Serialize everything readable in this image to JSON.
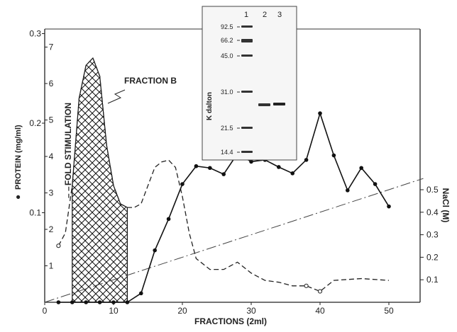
{
  "chart_data": {
    "type": "line",
    "xlabel": "FRACTIONS  (2ml)",
    "x_ticks": [
      "0",
      "10",
      "20",
      "30",
      "40",
      "50"
    ],
    "xlim": [
      0,
      55
    ],
    "left_axis_protein": {
      "label": "PROTEIN  (mg/ml)",
      "legend_marker": "●",
      "ticks": [
        "0.1",
        "0.2",
        "0.3"
      ],
      "ylim": [
        0,
        0.33
      ]
    },
    "left_axis_fold": {
      "label": "FOLD  STIMULATION",
      "legend_marker": "– –",
      "ticks": [
        "1",
        "2",
        "3",
        "4",
        "5",
        "6",
        "7"
      ],
      "ylim": [
        0,
        7.5
      ]
    },
    "right_axis": {
      "label": "NaCl (M)",
      "ticks": [
        "0.1",
        "0.2",
        "0.3",
        "0.4",
        "0.5"
      ],
      "ylim": [
        0,
        0.55
      ]
    },
    "series": [
      {
        "name": "PROTEIN (mg/ml)",
        "style": "solid-dots",
        "axis": "protein",
        "x": [
          2,
          4,
          6,
          8,
          10,
          12,
          14,
          16,
          18,
          20,
          22,
          24,
          26,
          28,
          30,
          32,
          34,
          36,
          38,
          40,
          42,
          44,
          46,
          48,
          50
        ],
        "y": [
          0.0,
          0.0,
          0.0,
          0.0,
          0.0,
          0.0,
          0.01,
          0.058,
          0.093,
          0.132,
          0.152,
          0.15,
          0.143,
          0.166,
          0.157,
          0.159,
          0.151,
          0.144,
          0.159,
          0.211,
          0.164,
          0.125,
          0.15,
          0.132,
          0.107
        ]
      },
      {
        "name": "FOLD STIMULATION",
        "style": "dashed",
        "axis": "fold",
        "x": [
          2,
          3,
          4,
          5,
          6,
          7,
          8,
          9,
          10,
          11,
          12,
          13,
          14,
          15,
          16,
          17,
          18,
          19,
          20,
          21,
          22,
          24,
          26,
          28,
          30,
          32,
          34,
          36,
          38,
          40,
          42,
          46,
          50
        ],
        "y": [
          1.55,
          1.9,
          3.2,
          5.6,
          6.5,
          6.7,
          6.2,
          4.3,
          3.2,
          2.7,
          2.6,
          2.6,
          2.7,
          3.2,
          3.7,
          3.85,
          3.9,
          3.7,
          2.9,
          1.9,
          1.2,
          0.9,
          0.9,
          1.1,
          0.8,
          0.6,
          0.55,
          0.45,
          0.45,
          0.3,
          0.6,
          0.65,
          0.6
        ]
      },
      {
        "name": "NaCl gradient",
        "style": "dash-dot",
        "axis": "nacl",
        "x": [
          0,
          55
        ],
        "y": [
          0.0,
          0.55
        ]
      }
    ],
    "shaded_region": {
      "x_from": 4,
      "x_to": 12,
      "label": "FRACTION B"
    },
    "inset_gel": {
      "lane_labels": [
        "1",
        "2",
        "3"
      ],
      "markers": [
        "92.5",
        "66.2",
        "45.0",
        "31.0",
        "21.5",
        "14.4"
      ],
      "axis_label": "K dalton"
    }
  }
}
